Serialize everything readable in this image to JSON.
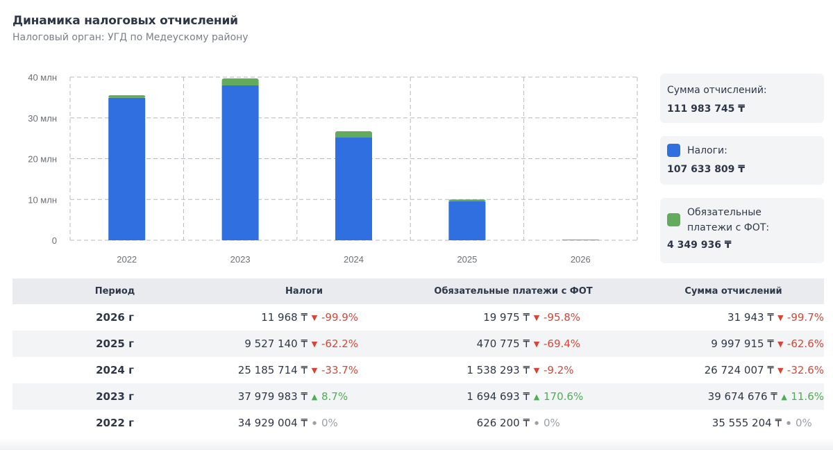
{
  "header": {
    "title": "Динамика налоговых отчислений",
    "subtitle": "Налоговый орган: УГД по Медеускому району"
  },
  "colors": {
    "taxes": "#2f6fe0",
    "fot": "#63ab5c",
    "down": "#d64535",
    "up": "#4caf50",
    "neutral": "#9aa0a8"
  },
  "chart_data": {
    "type": "bar",
    "stacked": true,
    "title": "Динамика налоговых отчислений",
    "xlabel": "",
    "ylabel": "",
    "categories": [
      "2022",
      "2023",
      "2024",
      "2025",
      "2026"
    ],
    "series": [
      {
        "name": "Налоги",
        "color": "#2f6fe0",
        "values": [
          34929004,
          37979983,
          25185714,
          9527140,
          11968
        ]
      },
      {
        "name": "Обязательные платежи с ФОТ",
        "color": "#63ab5c",
        "values": [
          626200,
          1694693,
          1538293,
          470775,
          19975
        ]
      }
    ],
    "ylim": [
      0,
      40000000
    ],
    "yticks": [
      0,
      10000000,
      20000000,
      30000000,
      40000000
    ],
    "ytick_labels": [
      "0",
      "10 млн",
      "20 млн",
      "30 млн",
      "40 млн"
    ],
    "grid": true,
    "legend": "right"
  },
  "summary": {
    "total": {
      "label": "Сумма отчислений:",
      "value": "111 983 745 ₸"
    },
    "taxes": {
      "label": "Налоги:",
      "value": "107 633 809 ₸"
    },
    "fot": {
      "label_line1": "Обязательные",
      "label_line2": "платежи с ФОТ:",
      "value": "4 349 936 ₸"
    }
  },
  "table": {
    "headers": [
      "Период",
      "Налоги",
      "Обязательные платежи с ФОТ",
      "Сумма отчислений"
    ],
    "rows": [
      {
        "period": "2026 г",
        "taxes": {
          "amount": "11 968 ₸",
          "trend": "down",
          "arrow": "▼",
          "pct": "-99.9%"
        },
        "fot": {
          "amount": "19 975 ₸",
          "trend": "down",
          "arrow": "▼",
          "pct": "-95.8%"
        },
        "sum": {
          "amount": "31 943 ₸",
          "trend": "down",
          "arrow": "▼",
          "pct": "-99.7%"
        }
      },
      {
        "period": "2025 г",
        "taxes": {
          "amount": "9 527 140 ₸",
          "trend": "down",
          "arrow": "▼",
          "pct": "-62.2%"
        },
        "fot": {
          "amount": "470 775 ₸",
          "trend": "down",
          "arrow": "▼",
          "pct": "-69.4%"
        },
        "sum": {
          "amount": "9 997 915 ₸",
          "trend": "down",
          "arrow": "▼",
          "pct": "-62.6%"
        }
      },
      {
        "period": "2024 г",
        "taxes": {
          "amount": "25 185 714 ₸",
          "trend": "down",
          "arrow": "▼",
          "pct": "-33.7%"
        },
        "fot": {
          "amount": "1 538 293 ₸",
          "trend": "down",
          "arrow": "▼",
          "pct": "-9.2%"
        },
        "sum": {
          "amount": "26 724 007 ₸",
          "trend": "down",
          "arrow": "▼",
          "pct": "-32.6%"
        }
      },
      {
        "period": "2023 г",
        "taxes": {
          "amount": "37 979 983 ₸",
          "trend": "up",
          "arrow": "▲",
          "pct": "8.7%"
        },
        "fot": {
          "amount": "1 694 693 ₸",
          "trend": "up",
          "arrow": "▲",
          "pct": "170.6%"
        },
        "sum": {
          "amount": "39 674 676 ₸",
          "trend": "up",
          "arrow": "▲",
          "pct": "11.6%"
        }
      },
      {
        "period": "2022 г",
        "taxes": {
          "amount": "34 929 004 ₸",
          "trend": "flat",
          "arrow": "●",
          "pct": "0%"
        },
        "fot": {
          "amount": "626 200 ₸",
          "trend": "flat",
          "arrow": "●",
          "pct": "0%"
        },
        "sum": {
          "amount": "35 555 204 ₸",
          "trend": "flat",
          "arrow": "●",
          "pct": "0%"
        }
      }
    ]
  }
}
